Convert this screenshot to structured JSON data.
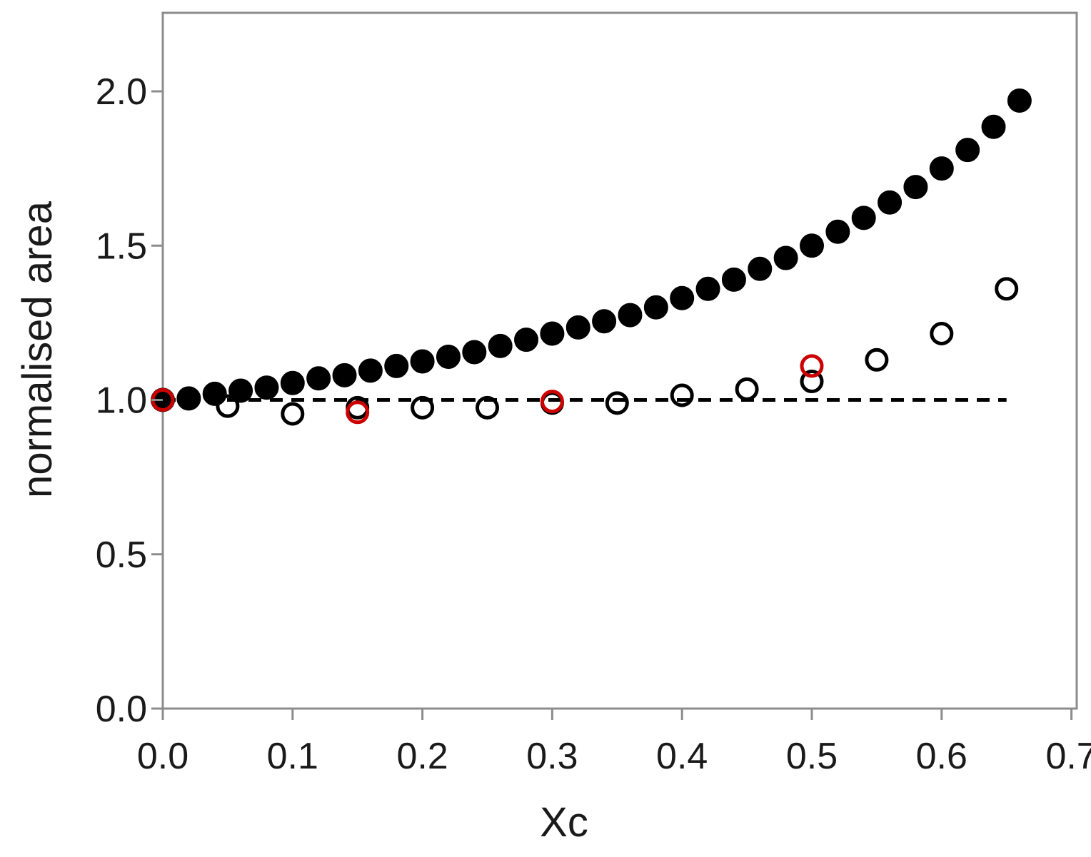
{
  "chart_data": {
    "type": "scatter",
    "title": "",
    "xlabel": "Xc",
    "ylabel": "normalised  area",
    "xlim": [
      0.0,
      0.7
    ],
    "ylim": [
      0.0,
      2.0
    ],
    "x_ticks": [
      "0.0",
      "0.1",
      "0.2",
      "0.3",
      "0.4",
      "0.5",
      "0.6",
      "0.7"
    ],
    "y_ticks": [
      "0.0",
      "0.5",
      "1.0",
      "1.5",
      "2.0"
    ],
    "grid": false,
    "series": [
      {
        "marker": "filled-circle",
        "color": "#000000",
        "points": [
          [
            0.0,
            1.0
          ],
          [
            0.02,
            1.005
          ],
          [
            0.04,
            1.02
          ],
          [
            0.06,
            1.03
          ],
          [
            0.08,
            1.04
          ],
          [
            0.1,
            1.055
          ],
          [
            0.12,
            1.07
          ],
          [
            0.14,
            1.08
          ],
          [
            0.16,
            1.095
          ],
          [
            0.18,
            1.11
          ],
          [
            0.2,
            1.125
          ],
          [
            0.22,
            1.14
          ],
          [
            0.24,
            1.155
          ],
          [
            0.26,
            1.175
          ],
          [
            0.28,
            1.195
          ],
          [
            0.3,
            1.215
          ],
          [
            0.32,
            1.235
          ],
          [
            0.34,
            1.255
          ],
          [
            0.36,
            1.275
          ],
          [
            0.38,
            1.3
          ],
          [
            0.4,
            1.33
          ],
          [
            0.42,
            1.36
          ],
          [
            0.44,
            1.39
          ],
          [
            0.46,
            1.425
          ],
          [
            0.48,
            1.46
          ],
          [
            0.5,
            1.5
          ],
          [
            0.52,
            1.545
          ],
          [
            0.54,
            1.59
          ],
          [
            0.56,
            1.64
          ],
          [
            0.58,
            1.69
          ],
          [
            0.6,
            1.75
          ],
          [
            0.62,
            1.81
          ],
          [
            0.64,
            1.885
          ],
          [
            0.66,
            1.97
          ]
        ]
      },
      {
        "marker": "open-circle",
        "color": "#000000",
        "points": [
          [
            0.05,
            0.98
          ],
          [
            0.1,
            0.955
          ],
          [
            0.15,
            0.975
          ],
          [
            0.2,
            0.975
          ],
          [
            0.25,
            0.975
          ],
          [
            0.3,
            0.99
          ],
          [
            0.35,
            0.99
          ],
          [
            0.4,
            1.015
          ],
          [
            0.45,
            1.035
          ],
          [
            0.5,
            1.06
          ],
          [
            0.55,
            1.13
          ],
          [
            0.6,
            1.215
          ],
          [
            0.65,
            1.36
          ]
        ]
      },
      {
        "marker": "open-circle",
        "color": "#cc0000",
        "points": [
          [
            0.0,
            1.0
          ],
          [
            0.15,
            0.96
          ],
          [
            0.3,
            0.995
          ],
          [
            0.5,
            1.11
          ]
        ]
      }
    ],
    "reference_line": {
      "style": "dashed",
      "color": "#000000",
      "y": 1.0,
      "x_range": [
        0.0,
        0.65
      ]
    }
  }
}
